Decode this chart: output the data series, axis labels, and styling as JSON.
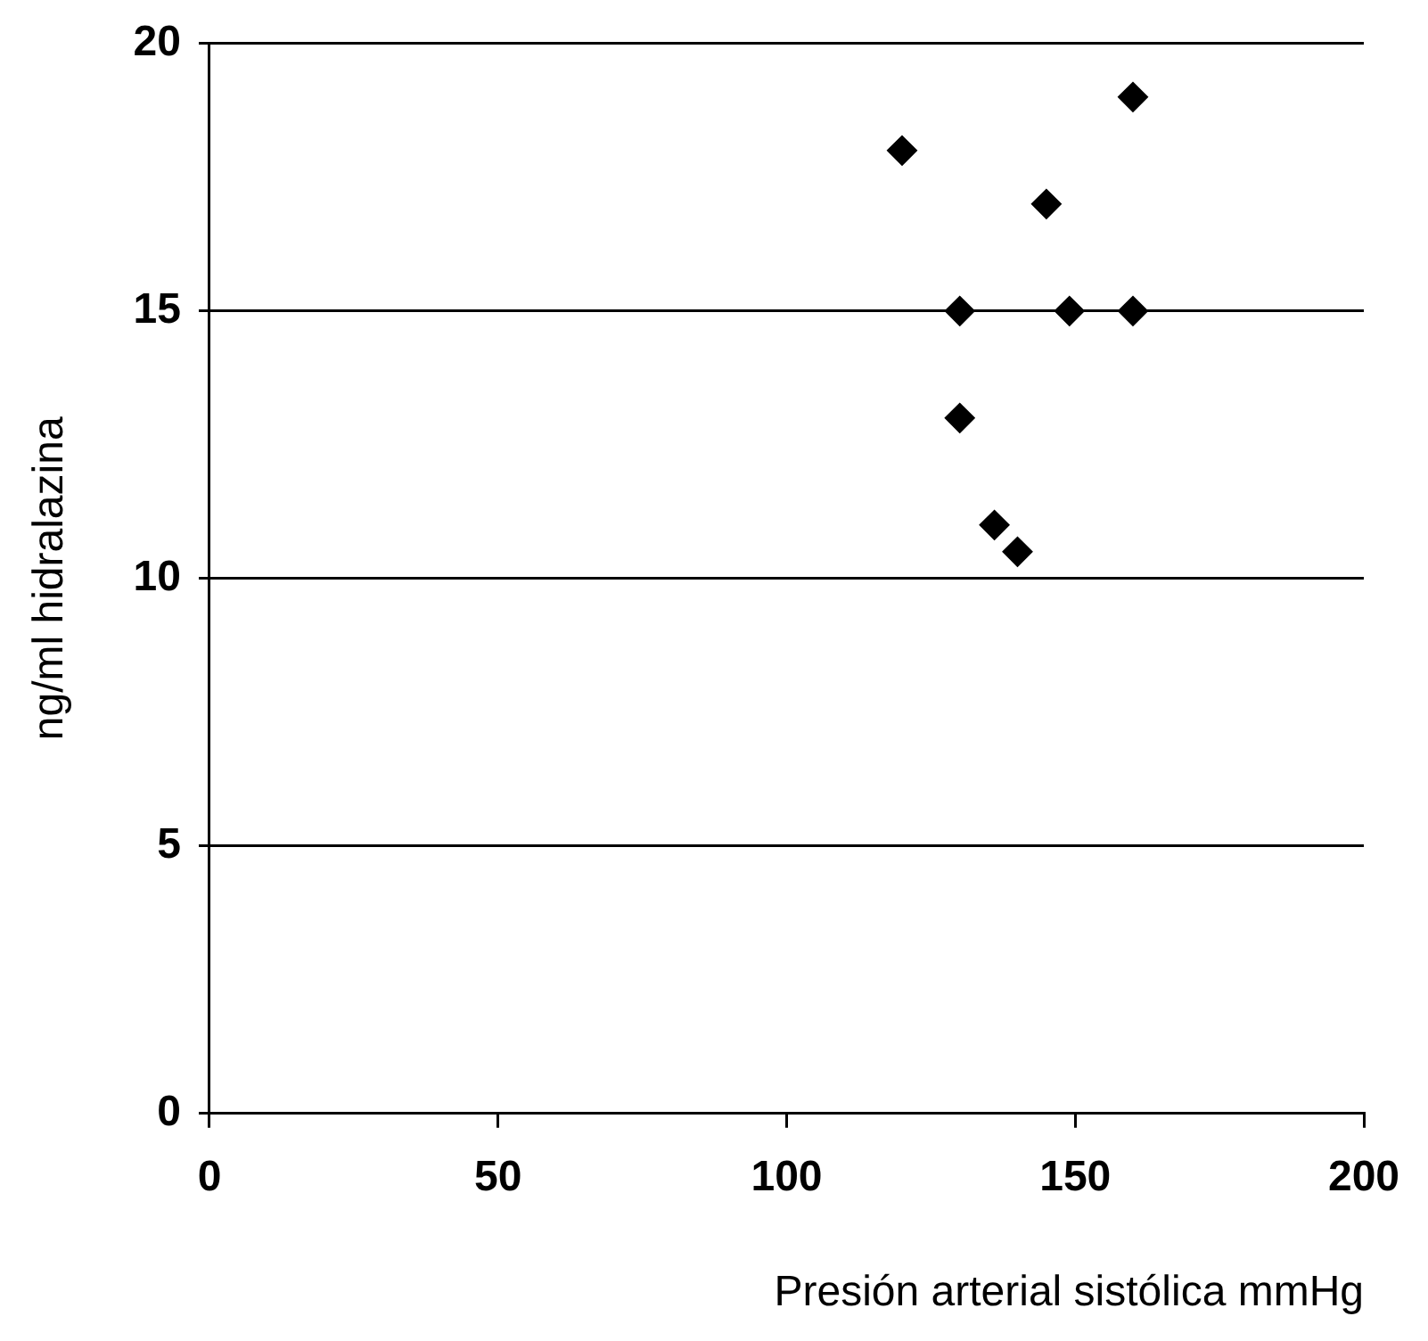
{
  "chart_data": {
    "type": "scatter",
    "xlabel": "Presión arterial sistólica mmHg",
    "ylabel": "ng/ml hidralazina",
    "series": [
      {
        "color": "#000000",
        "x": [
          120,
          130,
          130,
          136,
          140,
          145,
          149,
          160,
          160
        ],
        "values": [
          18,
          15,
          13,
          11,
          10.5,
          17,
          15,
          19,
          15
        ]
      }
    ],
    "xlim": [
      0,
      200
    ],
    "xticks": [
      0,
      50,
      100,
      150,
      200
    ],
    "ylim": [
      0,
      20
    ],
    "yticks": [
      0,
      5,
      10,
      15,
      20
    ],
    "grid": "y",
    "marker": "diamond",
    "legend": false
  }
}
